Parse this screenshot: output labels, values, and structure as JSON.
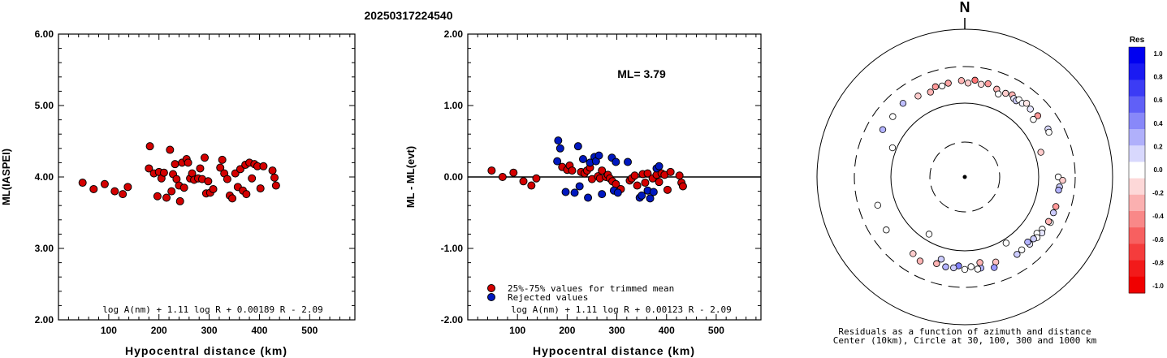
{
  "title": "20250317224540",
  "chart_data": [
    {
      "type": "scatter",
      "ylabel": "ML(IASPEI)",
      "xlabel": "Hypocentral distance (km)",
      "xticks": [
        "100",
        "200",
        "300",
        "400",
        "500"
      ],
      "yticks": [
        "2.00",
        "3.00",
        "4.00",
        "5.00",
        "6.00"
      ],
      "xlim": [
        0,
        590
      ],
      "ylim": [
        2.0,
        6.0
      ],
      "formula": "log A(nm) + 1.11 log R + 0.00189 R - 2.09",
      "series": [
        {
          "color": "#d40000",
          "points": [
            [
              48,
              3.92
            ],
            [
              70,
              3.83
            ],
            [
              92,
              3.9
            ],
            [
              112,
              3.8
            ],
            [
              128,
              3.76
            ],
            [
              138,
              3.86
            ],
            [
              180,
              4.12
            ],
            [
              182,
              4.43
            ],
            [
              190,
              4.05
            ],
            [
              197,
              3.73
            ],
            [
              200,
              4.07
            ],
            [
              205,
              3.98
            ],
            [
              210,
              4.06
            ],
            [
              215,
              3.71
            ],
            [
              222,
              4.38
            ],
            [
              225,
              3.8
            ],
            [
              228,
              4.04
            ],
            [
              232,
              4.18
            ],
            [
              235,
              3.97
            ],
            [
              240,
              3.88
            ],
            [
              242,
              3.66
            ],
            [
              246,
              4.2
            ],
            [
              250,
              3.85
            ],
            [
              255,
              4.25
            ],
            [
              258,
              4.2
            ],
            [
              262,
              3.98
            ],
            [
              266,
              4.05
            ],
            [
              270,
              3.96
            ],
            [
              278,
              3.98
            ],
            [
              282,
              4.12
            ],
            [
              286,
              3.97
            ],
            [
              291,
              4.27
            ],
            [
              294,
              3.77
            ],
            [
              298,
              3.94
            ],
            [
              302,
              3.78
            ],
            [
              308,
              3.83
            ],
            [
              322,
              4.13
            ],
            [
              326,
              4.24
            ],
            [
              330,
              4.05
            ],
            [
              336,
              3.97
            ],
            [
              341,
              3.74
            ],
            [
              346,
              3.7
            ],
            [
              352,
              4.05
            ],
            [
              357,
              3.86
            ],
            [
              362,
              4.11
            ],
            [
              367,
              3.81
            ],
            [
              372,
              4.17
            ],
            [
              374,
              3.76
            ],
            [
              380,
              4.2
            ],
            [
              385,
              3.98
            ],
            [
              390,
              4.18
            ],
            [
              396,
              4.15
            ],
            [
              402,
              3.84
            ],
            [
              408,
              4.15
            ],
            [
              426,
              4.09
            ],
            [
              430,
              3.99
            ],
            [
              433,
              3.88
            ]
          ]
        }
      ]
    },
    {
      "type": "scatter",
      "ylabel": "ML - ML(evt)",
      "xlabel": "Hypocentral distance (km)",
      "xticks": [
        "100",
        "200",
        "300",
        "400",
        "500"
      ],
      "yticks": [
        "-2.00",
        "-1.00",
        "0.00",
        "1.00",
        "2.00"
      ],
      "xlim": [
        0,
        590
      ],
      "ylim": [
        -2.0,
        2.0
      ],
      "annotation": "ML= 3.79",
      "formula": "log A(nm) + 1.11 log R + 0.00123 R - 2.09",
      "legend": [
        "25%-75% values for trimmed mean",
        "Rejected values"
      ],
      "series": [
        {
          "name": "25%-75% values for trimmed mean",
          "color": "#d40000",
          "points": [
            [
              48,
              0.09
            ],
            [
              70,
              0.0
            ],
            [
              92,
              0.06
            ],
            [
              112,
              -0.06
            ],
            [
              128,
              -0.12
            ],
            [
              138,
              -0.02
            ],
            [
              190,
              0.14
            ],
            [
              200,
              0.1
            ],
            [
              205,
              0.16
            ],
            [
              210,
              0.09
            ],
            [
              228,
              0.07
            ],
            [
              235,
              0.05
            ],
            [
              240,
              0.09
            ],
            [
              246,
              0.13
            ],
            [
              250,
              -0.03
            ],
            [
              262,
              0.01
            ],
            [
              266,
              -0.02
            ],
            [
              270,
              0.09
            ],
            [
              278,
              0.0
            ],
            [
              282,
              0.03
            ],
            [
              286,
              -0.02
            ],
            [
              291,
              -0.06
            ],
            [
              298,
              -0.1
            ],
            [
              308,
              -0.17
            ],
            [
              326,
              -0.05
            ],
            [
              330,
              -0.02
            ],
            [
              336,
              0.02
            ],
            [
              341,
              -0.12
            ],
            [
              352,
              0.04
            ],
            [
              357,
              -0.08
            ],
            [
              362,
              0.05
            ],
            [
              372,
              -0.02
            ],
            [
              380,
              0.03
            ],
            [
              385,
              -0.07
            ],
            [
              390,
              0.05
            ],
            [
              396,
              0.03
            ],
            [
              402,
              -0.18
            ],
            [
              408,
              0.07
            ],
            [
              426,
              0.02
            ],
            [
              430,
              -0.08
            ],
            [
              433,
              -0.13
            ]
          ]
        },
        {
          "name": "Rejected values",
          "color": "#0018c0",
          "points": [
            [
              180,
              0.22
            ],
            [
              182,
              0.51
            ],
            [
              186,
              0.4
            ],
            [
              197,
              -0.21
            ],
            [
              215,
              -0.22
            ],
            [
              222,
              0.43
            ],
            [
              225,
              -0.13
            ],
            [
              232,
              0.25
            ],
            [
              242,
              -0.29
            ],
            [
              246,
              0.2
            ],
            [
              255,
              0.28
            ],
            [
              258,
              0.22
            ],
            [
              264,
              0.3
            ],
            [
              270,
              -0.24
            ],
            [
              290,
              0.27
            ],
            [
              294,
              -0.19
            ],
            [
              298,
              0.21
            ],
            [
              302,
              -0.22
            ],
            [
              322,
              0.21
            ],
            [
              346,
              -0.29
            ],
            [
              350,
              -0.26
            ],
            [
              362,
              -0.19
            ],
            [
              367,
              -0.3
            ],
            [
              374,
              -0.21
            ],
            [
              380,
              0.12
            ],
            [
              385,
              0.15
            ]
          ]
        }
      ]
    }
  ],
  "polar": {
    "north_label": "N",
    "caption_line1": "Residuals as a function of azimuth and distance",
    "caption_line2": "Center (10km), Circle at 30, 100, 300 and 1000 km",
    "colorbar_title": "Res",
    "colorbar_labels": [
      "1.0",
      "0.8",
      "0.6",
      "0.4",
      "0.2",
      "0.0",
      "-0.2",
      "-0.4",
      "-0.6",
      "-0.8",
      "-1.0"
    ],
    "colorbar_colors": [
      "#0000f0",
      "#1a1af2",
      "#3c3cf5",
      "#6060f7",
      "#8888f9",
      "#b0b0fb",
      "#d8d8fd",
      "#ffffff",
      "#fdd8d8",
      "#fbb0b0",
      "#f98888",
      "#f76060",
      "#f53c3c",
      "#f21a1a",
      "#f00000"
    ],
    "stations": [
      {
        "az": 350,
        "dist": 190,
        "res": -0.35
      },
      {
        "az": 358,
        "dist": 197,
        "res": -0.3
      },
      {
        "az": 6,
        "dist": 202,
        "res": -0.55
      },
      {
        "az": 2,
        "dist": 183,
        "res": -0.2
      },
      {
        "az": 10,
        "dist": 184,
        "res": -0.15
      },
      {
        "az": 14,
        "dist": 195,
        "res": -0.4
      },
      {
        "az": 20,
        "dist": 180,
        "res": -0.3
      },
      {
        "az": 22,
        "dist": 160,
        "res": 0.0
      },
      {
        "az": 26,
        "dist": 178,
        "res": -0.2
      },
      {
        "az": 30,
        "dist": 188,
        "res": -0.3
      },
      {
        "az": 32,
        "dist": 175,
        "res": 0.1
      },
      {
        "az": 34,
        "dist": 172,
        "res": 0.2
      },
      {
        "az": 35,
        "dist": 185,
        "res": 0.0
      },
      {
        "az": 38,
        "dist": 180,
        "res": 0.05
      },
      {
        "az": 40,
        "dist": 195,
        "res": -0.1
      },
      {
        "az": 44,
        "dist": 185,
        "res": 0.1
      },
      {
        "az": 50,
        "dist": 190,
        "res": -0.4
      },
      {
        "az": 50,
        "dist": 160,
        "res": 0.0
      },
      {
        "az": 60,
        "dist": 195,
        "res": 0.15
      },
      {
        "az": 62,
        "dist": 190,
        "res": 0.0
      },
      {
        "az": 72,
        "dist": 120,
        "res": -0.2
      },
      {
        "az": 90,
        "dist": 180,
        "res": 0.0
      },
      {
        "az": 92,
        "dist": 206,
        "res": -0.2
      },
      {
        "az": 96,
        "dist": 190,
        "res": 0.2
      },
      {
        "az": 98,
        "dist": 187,
        "res": 0.3
      },
      {
        "az": 108,
        "dist": 193,
        "res": -0.4
      },
      {
        "az": 112,
        "dist": 192,
        "res": 0.2
      },
      {
        "az": 118,
        "dist": 200,
        "res": 0.0
      },
      {
        "az": 118,
        "dist": 188,
        "res": -0.3
      },
      {
        "az": 124,
        "dist": 180,
        "res": 0.0
      },
      {
        "az": 126,
        "dist": 190,
        "res": 0.1
      },
      {
        "az": 128,
        "dist": 170,
        "res": 0.0
      },
      {
        "az": 130,
        "dist": 185,
        "res": 0.0
      },
      {
        "az": 132,
        "dist": 175,
        "res": 0.2
      },
      {
        "az": 136,
        "dist": 180,
        "res": 0.1
      },
      {
        "az": 136,
        "dist": 165,
        "res": 0.3
      },
      {
        "az": 142,
        "dist": 175,
        "res": 0.0
      },
      {
        "az": 146,
        "dist": 180,
        "res": 0.2
      },
      {
        "az": 148,
        "dist": 113,
        "res": 0.0
      },
      {
        "az": 160,
        "dist": 165,
        "res": -0.25
      },
      {
        "az": 162,
        "dist": 190,
        "res": 0.4
      },
      {
        "az": 170,
        "dist": 175,
        "res": 0.3
      },
      {
        "az": 170,
        "dist": 148,
        "res": -0.3
      },
      {
        "az": 172,
        "dist": 178,
        "res": 0.0
      },
      {
        "az": 176,
        "dist": 162,
        "res": 0.0
      },
      {
        "az": 180,
        "dist": 175,
        "res": 0.0
      },
      {
        "az": 184,
        "dist": 158,
        "res": 0.5
      },
      {
        "az": 187,
        "dist": 170,
        "res": 0.2
      },
      {
        "az": 192,
        "dist": 172,
        "res": 0.3
      },
      {
        "az": 196,
        "dist": 142,
        "res": 0.2
      },
      {
        "az": 198,
        "dist": 168,
        "res": -0.3
      },
      {
        "az": 208,
        "dist": 190,
        "res": -0.3
      },
      {
        "az": 214,
        "dist": 175,
        "res": -0.2
      },
      {
        "az": 212,
        "dist": 82,
        "res": 0.0
      },
      {
        "az": 236,
        "dist": 187,
        "res": 0.0
      },
      {
        "az": 252,
        "dist": 170,
        "res": 0.0
      },
      {
        "az": 292,
        "dist": 113,
        "res": 0.0
      },
      {
        "az": 300,
        "dist": 187,
        "res": 0.3
      },
      {
        "az": 310,
        "dist": 183,
        "res": 0.0
      },
      {
        "az": 320,
        "dist": 195,
        "res": 0.25
      },
      {
        "az": 330,
        "dist": 180,
        "res": -0.2
      },
      {
        "az": 338,
        "dist": 170,
        "res": -0.3
      },
      {
        "az": 342,
        "dist": 188,
        "res": -0.4
      },
      {
        "az": 346,
        "dist": 182,
        "res": 0.0
      }
    ]
  }
}
